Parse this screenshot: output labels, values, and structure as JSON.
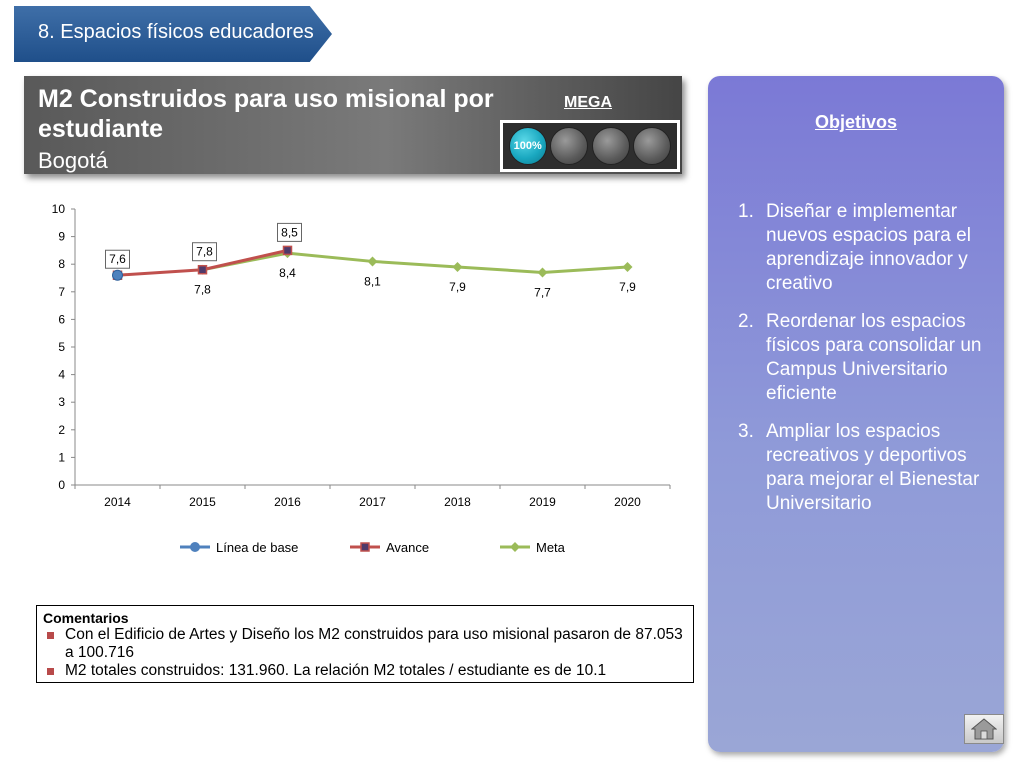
{
  "section": {
    "label": "8. Espacios físicos educadores"
  },
  "header": {
    "title": " M2 Construidos para uso misional por estudiante",
    "subtitle": "Bogotá",
    "mega_label": "MEGA",
    "mega_value": "100%",
    "mega_progress": 1.0
  },
  "objectives": {
    "title": "Objetivos",
    "items": [
      {
        "num": "1.",
        "text": "Diseñar e implementar nuevos espacios para el aprendizaje innovador y creativo"
      },
      {
        "num": "2.",
        "text": "Reordenar los espacios físicos para consolidar un Campus Universitario eficiente"
      },
      {
        "num": "3.",
        "text": "Ampliar los espacios recreativos y deportivos para mejorar el Bienestar Universitario"
      }
    ],
    "home_icon": "home-icon"
  },
  "chart_data": {
    "type": "line",
    "title": "",
    "xlabel": "",
    "ylabel": "",
    "ylim": [
      0,
      10
    ],
    "yticks": [
      "0",
      "1",
      "2",
      "3",
      "4",
      "5",
      "6",
      "7",
      "8",
      "9",
      "10"
    ],
    "categories": [
      "2014",
      "2015",
      "2016",
      "2017",
      "2018",
      "2019",
      "2020"
    ],
    "legend_position": "bottom",
    "grid": false,
    "series": [
      {
        "name": "Línea de base",
        "color": "#4f81bd",
        "marker": "circle",
        "values": [
          7.6,
          null,
          null,
          null,
          null,
          null,
          null
        ],
        "labels": [
          "7,6",
          "",
          "",
          "",
          "",
          "",
          ""
        ]
      },
      {
        "name": "Avance",
        "color": "#c0504d",
        "marker": "square",
        "values": [
          7.6,
          7.8,
          8.5,
          null,
          null,
          null,
          null
        ],
        "labels": [
          "",
          "7,8",
          "8,5",
          "",
          "",
          "",
          ""
        ]
      },
      {
        "name": "Meta",
        "color": "#9bbb59",
        "marker": "diamond",
        "values": [
          null,
          7.8,
          8.4,
          8.1,
          7.9,
          7.7,
          7.9
        ],
        "labels": [
          "",
          "7,8",
          "8,4",
          "8,1",
          "7,9",
          "7,7",
          "7,9"
        ]
      }
    ]
  },
  "comments": {
    "title": "Comentarios",
    "items": [
      "Con el Edificio de Artes y Diseño los M2 construidos para uso misional pasaron de 87.053 a 100.716",
      "M2 totales construidos: 131.960. La relación M2 totales / estudiante es de 10.1"
    ]
  }
}
